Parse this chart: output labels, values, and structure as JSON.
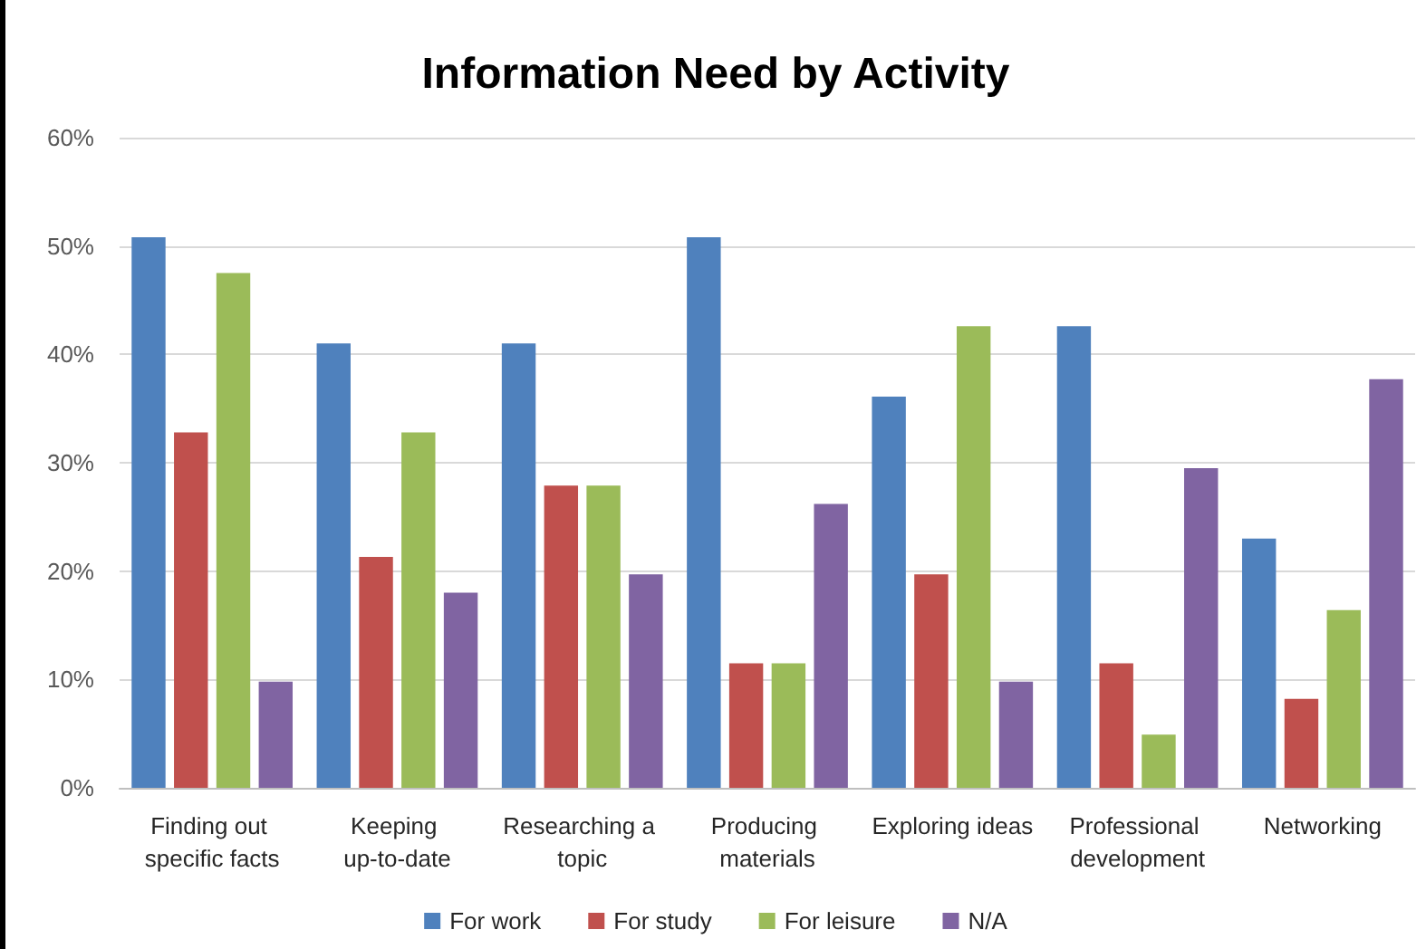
{
  "chart_data": {
    "type": "bar",
    "title": "Information Need by Activity",
    "categories": [
      "Finding out specific facts",
      "Keeping up-to-date",
      "Researching a topic",
      "Producing materials",
      "Exploring ideas",
      "Professional development",
      "Networking"
    ],
    "series": [
      {
        "name": "For work",
        "color": "#4f81bd",
        "values": [
          50.8,
          41.0,
          41.0,
          50.8,
          36.1,
          42.6,
          23.0
        ]
      },
      {
        "name": "For study",
        "color": "#c0504d",
        "values": [
          32.8,
          21.3,
          27.9,
          11.5,
          19.7,
          11.5,
          8.2
        ]
      },
      {
        "name": "For leisure",
        "color": "#9bbb59",
        "values": [
          47.5,
          32.8,
          27.9,
          11.5,
          42.6,
          4.9,
          16.4
        ]
      },
      {
        "name": "N/A",
        "color": "#8064a2",
        "values": [
          9.8,
          18.0,
          19.7,
          26.2,
          9.8,
          29.5,
          37.7
        ]
      }
    ],
    "ylim": [
      0,
      60
    ],
    "yticks": [
      {
        "value": 0,
        "label": "0%"
      },
      {
        "value": 10,
        "label": "10%"
      },
      {
        "value": 20,
        "label": "20%"
      },
      {
        "value": 30,
        "label": "30%"
      },
      {
        "value": 40,
        "label": "40%"
      },
      {
        "value": 50,
        "label": "50%"
      },
      {
        "value": 60,
        "label": "60%"
      }
    ],
    "grid": "y",
    "legend": "bottom"
  }
}
